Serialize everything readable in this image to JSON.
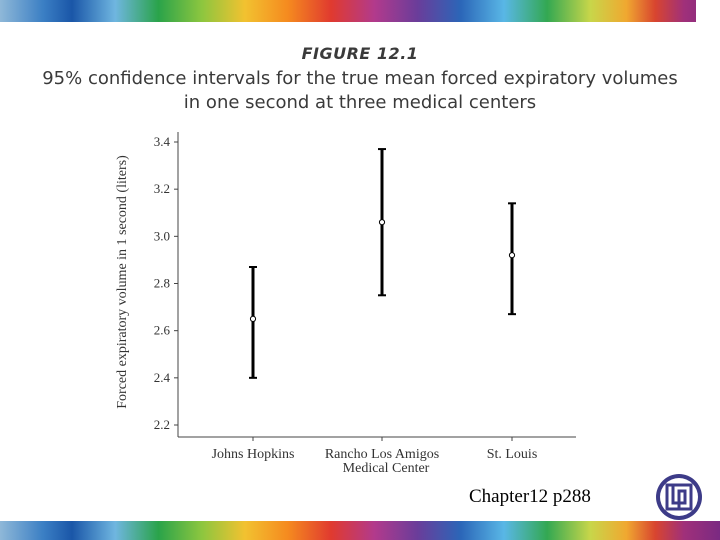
{
  "figure_label": "FIGURE 12.1",
  "caption_line1": "95% confidence intervals for the true mean forced expiratory volumes",
  "caption_line2": "in one second at three medical centers",
  "footer_text": "Chapter12 p288",
  "logo_icon": "university-seal-icon",
  "chart_data": {
    "type": "errorbar",
    "title": "95% confidence intervals for the true mean forced expiratory volumes in one second at three medical centers",
    "ylabel": "Forced expiratory volume in 1 second (liters)",
    "xlabel": "Medical Center",
    "ylim": [
      2.2,
      3.4
    ],
    "yticks": [
      "2.2",
      "2.4",
      "2.6",
      "2.8",
      "3.0",
      "3.2",
      "3.4"
    ],
    "categories": [
      "Johns Hopkins",
      "Rancho Los Amigos",
      "St. Louis"
    ],
    "points": [
      {
        "category": "Johns Hopkins",
        "mean": 2.65,
        "lower": 2.4,
        "upper": 2.87
      },
      {
        "category": "Rancho Los Amigos",
        "mean": 3.06,
        "lower": 2.75,
        "upper": 3.37
      },
      {
        "category": "St. Louis",
        "mean": 2.92,
        "lower": 2.67,
        "upper": 3.14
      }
    ],
    "grid": false,
    "legend": "none"
  }
}
